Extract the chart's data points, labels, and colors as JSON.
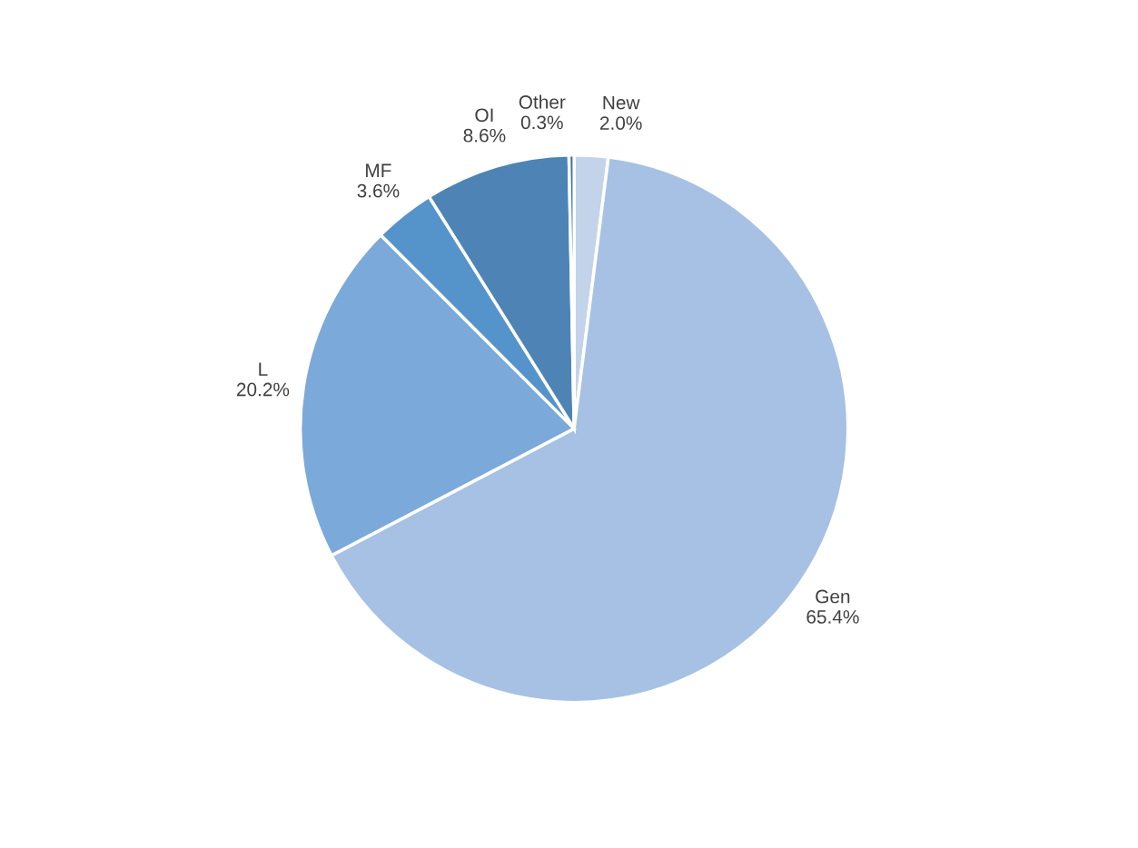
{
  "chart_data": {
    "type": "pie",
    "categories": [
      "New",
      "Gen",
      "L",
      "MF",
      "OI",
      "Other"
    ],
    "values": [
      2.0,
      65.4,
      20.2,
      3.6,
      8.6,
      0.3
    ],
    "value_labels": [
      "2.0%",
      "65.4%",
      "20.2%",
      "3.6%",
      "8.6%",
      "0.3%"
    ],
    "colors": [
      "#c3d4ea",
      "#a6c1e3",
      "#7ba9d9",
      "#5593cb",
      "#4e84b5",
      "#3f70a3"
    ],
    "legend": false
  }
}
